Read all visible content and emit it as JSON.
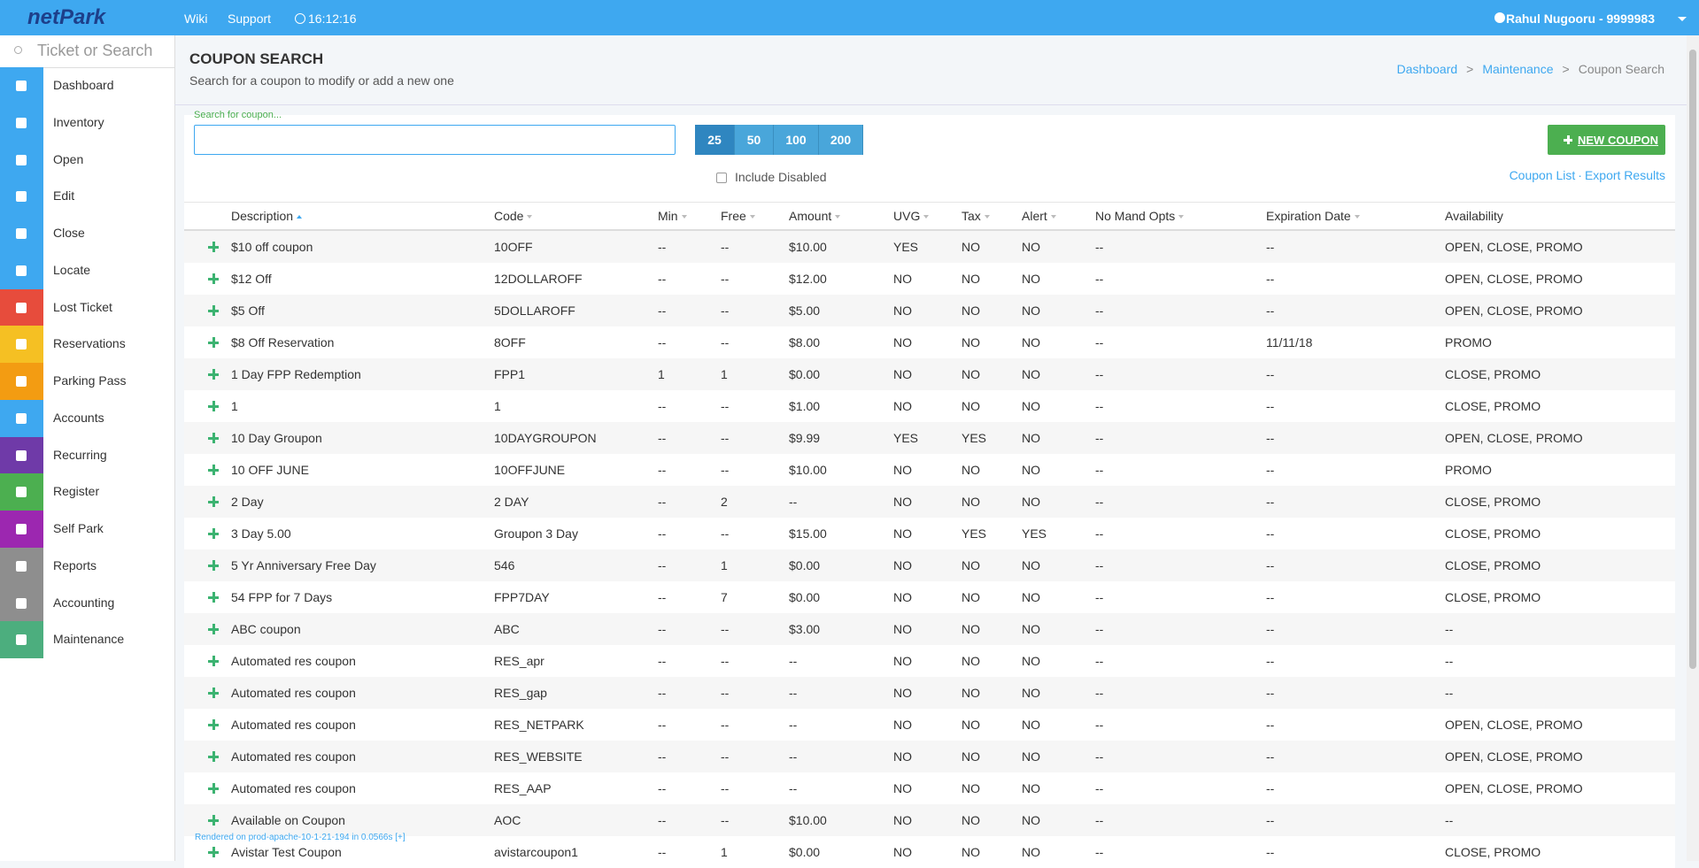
{
  "topbar": {
    "logo": "netPark",
    "links": [
      "Wiki",
      "Support"
    ],
    "clock": "16:12:16",
    "user": "Rahul Nugooru - 9999983"
  },
  "sidebar": {
    "search_placeholder": "Ticket or Search",
    "items": [
      "Dashboard",
      "Inventory",
      "Open",
      "Edit",
      "Close",
      "Locate",
      "Lost Ticket",
      "Reservations",
      "Parking Pass",
      "Accounts",
      "Recurring",
      "Register",
      "Self Park",
      "Reports",
      "Accounting",
      "Maintenance"
    ]
  },
  "page": {
    "title": "COUPON SEARCH",
    "subtitle": "Search for a coupon to modify or add a new one",
    "breadcrumb": [
      "Dashboard",
      "Maintenance",
      "Coupon Search"
    ],
    "breadcrumb_separator": ">"
  },
  "search": {
    "label": "Search for coupon...",
    "page_sizes": [
      25,
      50,
      100,
      200
    ],
    "include_disabled": "Include Disabled",
    "new_coupon": "NEW COUPON",
    "links": [
      "Coupon List",
      "Export Results"
    ],
    "links_separator": "·"
  },
  "table": {
    "columns": [
      "Description",
      "Code",
      "Min",
      "Free",
      "Amount",
      "UVG",
      "Tax",
      "Alert",
      "No Mand Opts",
      "Expiration Date",
      "Availability"
    ],
    "rows": [
      [
        "$10 off coupon",
        "10OFF",
        "--",
        "--",
        "$10.00",
        "YES",
        "NO",
        "NO",
        "--",
        "--",
        "OPEN, CLOSE, PROMO"
      ],
      [
        "$12 Off",
        "12DOLLAROFF",
        "--",
        "--",
        "$12.00",
        "NO",
        "NO",
        "NO",
        "--",
        "--",
        "OPEN, CLOSE, PROMO"
      ],
      [
        "$5 Off",
        "5DOLLAROFF",
        "--",
        "--",
        "$5.00",
        "NO",
        "NO",
        "NO",
        "--",
        "--",
        "OPEN, CLOSE, PROMO"
      ],
      [
        "$8 Off Reservation",
        "8OFF",
        "--",
        "--",
        "$8.00",
        "NO",
        "NO",
        "NO",
        "--",
        "11/11/18",
        "PROMO"
      ],
      [
        "1 Day FPP Redemption",
        "FPP1",
        "1",
        "1",
        "$0.00",
        "NO",
        "NO",
        "NO",
        "--",
        "--",
        "CLOSE, PROMO"
      ],
      [
        "1",
        "1",
        "--",
        "--",
        "$1.00",
        "NO",
        "NO",
        "NO",
        "--",
        "--",
        "CLOSE, PROMO"
      ],
      [
        "10 Day Groupon",
        "10DAYGROUPON",
        "--",
        "--",
        "$9.99",
        "YES",
        "YES",
        "NO",
        "--",
        "--",
        "OPEN, CLOSE, PROMO"
      ],
      [
        "10 OFF JUNE",
        "10OFFJUNE",
        "--",
        "--",
        "$10.00",
        "NO",
        "NO",
        "NO",
        "--",
        "--",
        "PROMO"
      ],
      [
        "2 Day",
        "2 DAY",
        "--",
        "2",
        "--",
        "NO",
        "NO",
        "NO",
        "--",
        "--",
        "CLOSE, PROMO"
      ],
      [
        "3 Day 5.00",
        "Groupon 3 Day",
        "--",
        "--",
        "$15.00",
        "NO",
        "YES",
        "YES",
        "--",
        "--",
        "CLOSE, PROMO"
      ],
      [
        "5 Yr Anniversary Free Day",
        "546",
        "--",
        "1",
        "$0.00",
        "NO",
        "NO",
        "NO",
        "--",
        "--",
        "CLOSE, PROMO"
      ],
      [
        "54 FPP for 7 Days",
        "FPP7DAY",
        "--",
        "7",
        "$0.00",
        "NO",
        "NO",
        "NO",
        "--",
        "--",
        "CLOSE, PROMO"
      ],
      [
        "ABC coupon",
        "ABC",
        "--",
        "--",
        "$3.00",
        "NO",
        "NO",
        "NO",
        "--",
        "--",
        "--"
      ],
      [
        "Automated res coupon",
        "RES_apr",
        "--",
        "--",
        "--",
        "NO",
        "NO",
        "NO",
        "--",
        "--",
        "--"
      ],
      [
        "Automated res coupon",
        "RES_gap",
        "--",
        "--",
        "--",
        "NO",
        "NO",
        "NO",
        "--",
        "--",
        "--"
      ],
      [
        "Automated res coupon",
        "RES_NETPARK",
        "--",
        "--",
        "--",
        "NO",
        "NO",
        "NO",
        "--",
        "--",
        "OPEN, CLOSE, PROMO"
      ],
      [
        "Automated res coupon",
        "RES_WEBSITE",
        "--",
        "--",
        "--",
        "NO",
        "NO",
        "NO",
        "--",
        "--",
        "OPEN, CLOSE, PROMO"
      ],
      [
        "Automated res coupon",
        "RES_AAP",
        "--",
        "--",
        "--",
        "NO",
        "NO",
        "NO",
        "--",
        "--",
        "OPEN, CLOSE, PROMO"
      ],
      [
        "Available on Coupon",
        "AOC",
        "--",
        "--",
        "$10.00",
        "NO",
        "NO",
        "NO",
        "--",
        "--",
        "--"
      ],
      [
        "Avistar Test Coupon",
        "avistarcoupon1",
        "--",
        "1",
        "$0.00",
        "NO",
        "NO",
        "NO",
        "--",
        "--",
        "CLOSE, PROMO"
      ]
    ]
  },
  "footer": "Rendered on prod-apache-10-1-21-194 in 0.0566s [+]"
}
